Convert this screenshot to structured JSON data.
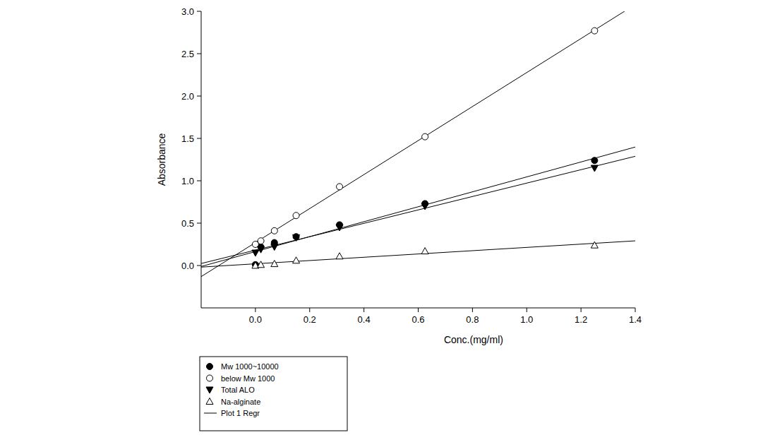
{
  "chart_data": {
    "type": "scatter",
    "x_label": "Conc.(mg/ml)",
    "y_label": "Absorbance",
    "x": [
      0,
      0.02,
      0.07,
      0.15,
      0.31,
      0.625,
      1.25
    ],
    "series": [
      {
        "name": "Mw 1000~10000",
        "color": "#000000",
        "marker": "circle-filled",
        "values": [
          0.01,
          0.22,
          0.27,
          0.34,
          0.48,
          0.73,
          1.24
        ]
      },
      {
        "name": "below Mw 1000",
        "color": "#000000",
        "marker": "circle-open",
        "values": [
          0.25,
          0.29,
          0.41,
          0.59,
          0.93,
          1.52,
          2.77
        ]
      },
      {
        "name": "Total ALO",
        "color": "#000000",
        "marker": "triangle-down-filled",
        "values": [
          0.15,
          0.19,
          0.22,
          0.33,
          0.45,
          0.7,
          1.15
        ]
      },
      {
        "name": "Na-alginate",
        "color": "#000000",
        "marker": "triangle-up-open",
        "values": [
          0.0,
          0.01,
          0.02,
          0.06,
          0.11,
          0.17,
          0.24
        ]
      }
    ],
    "fit_name": "Plot 1 Regr",
    "xlim": [
      -0.2,
      1.4
    ],
    "ylim": [
      -0.5,
      3.0
    ],
    "xticks": [
      {
        "value": 0,
        "label": "0.0"
      },
      {
        "value": 0.2,
        "label": "0.2"
      },
      {
        "value": 0.4,
        "label": "0.4"
      },
      {
        "value": 0.6,
        "label": "0.6"
      },
      {
        "value": 0.8,
        "label": "0.8"
      },
      {
        "value": 1.0,
        "label": "1.0"
      },
      {
        "value": 1.2,
        "label": "1.2"
      },
      {
        "value": 1.4,
        "label": "1.4"
      }
    ],
    "yticks": [
      {
        "value": 0,
        "label": "0.0"
      },
      {
        "value": 0.5,
        "label": "0.5"
      },
      {
        "value": 1.0,
        "label": "1.0"
      },
      {
        "value": 1.5,
        "label": "1.5"
      },
      {
        "value": 2.0,
        "label": "2.0"
      },
      {
        "value": 2.5,
        "label": "2.5"
      },
      {
        "value": 3.0,
        "label": "3.0"
      }
    ],
    "grid": false,
    "legend": "bottom-left"
  }
}
